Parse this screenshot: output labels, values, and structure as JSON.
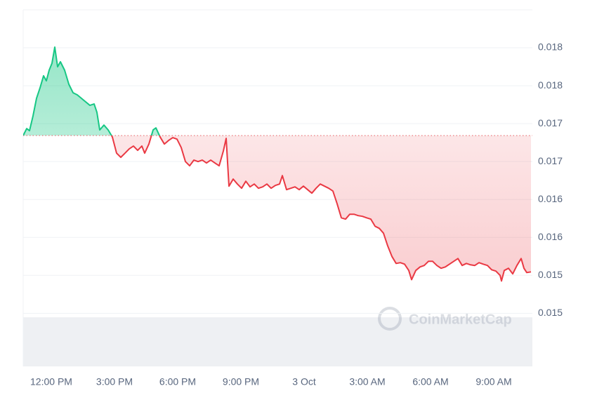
{
  "chart_data": {
    "type": "line",
    "watermark": "CoinMarketCap",
    "x": [
      -1.333,
      -1.167,
      -1.033,
      -0.867,
      -0.7,
      -0.533,
      -0.367,
      -0.233,
      -0.1,
      0.033,
      0.167,
      0.3,
      0.433,
      0.633,
      0.833,
      1.033,
      1.233,
      1.433,
      1.633,
      1.833,
      2.033,
      2.167,
      2.3,
      2.5,
      2.7,
      2.9,
      3.1,
      3.3,
      3.5,
      3.7,
      3.9,
      4.1,
      4.3,
      4.433,
      4.633,
      4.833,
      4.967,
      5.167,
      5.367,
      5.567,
      5.767,
      5.967,
      6.167,
      6.367,
      6.567,
      6.767,
      6.967,
      7.167,
      7.367,
      7.567,
      7.767,
      7.967,
      8.167,
      8.3,
      8.433,
      8.633,
      8.833,
      9.033,
      9.233,
      9.433,
      9.633,
      9.833,
      10.033,
      10.233,
      10.433,
      10.633,
      10.833,
      10.967,
      11.167,
      11.367,
      11.567,
      11.767,
      11.967,
      12.167,
      12.367,
      12.567,
      12.767,
      12.967,
      13.167,
      13.367,
      13.567,
      13.767,
      13.967,
      14.167,
      14.367,
      14.567,
      14.767,
      14.967,
      15.167,
      15.367,
      15.567,
      15.767,
      15.967,
      16.167,
      16.367,
      16.567,
      16.767,
      16.967,
      17.1,
      17.3,
      17.5,
      17.7,
      17.9,
      18.1,
      18.3,
      18.5,
      18.7,
      18.9,
      19.1,
      19.3,
      19.5,
      19.7,
      19.9,
      20.1,
      20.3,
      20.5,
      20.7,
      20.9,
      21.1,
      21.3,
      21.367,
      21.5,
      21.7,
      21.9,
      22.1,
      22.3,
      22.433,
      22.567,
      22.767
    ],
    "values": [
      0.016943,
      0.017035,
      0.017007,
      0.017202,
      0.017433,
      0.017572,
      0.01773,
      0.017665,
      0.017804,
      0.017896,
      0.018109,
      0.01785,
      0.017915,
      0.017804,
      0.017619,
      0.017507,
      0.01748,
      0.017433,
      0.017387,
      0.017341,
      0.017359,
      0.017248,
      0.017017,
      0.017081,
      0.017017,
      0.016924,
      0.016711,
      0.016656,
      0.016711,
      0.016767,
      0.016804,
      0.016748,
      0.016804,
      0.016711,
      0.016831,
      0.017017,
      0.017044,
      0.016924,
      0.016831,
      0.016878,
      0.016915,
      0.016896,
      0.016785,
      0.0166,
      0.016544,
      0.016619,
      0.0166,
      0.016619,
      0.016581,
      0.016619,
      0.016581,
      0.016544,
      0.016739,
      0.016906,
      0.016276,
      0.016369,
      0.016304,
      0.016248,
      0.016341,
      0.016267,
      0.016304,
      0.016248,
      0.016267,
      0.016304,
      0.016248,
      0.016285,
      0.016304,
      0.016415,
      0.01623,
      0.016248,
      0.016267,
      0.01623,
      0.016276,
      0.01623,
      0.016183,
      0.016248,
      0.016304,
      0.016276,
      0.016248,
      0.016211,
      0.016044,
      0.015859,
      0.015841,
      0.015906,
      0.015906,
      0.015887,
      0.015878,
      0.015859,
      0.015841,
      0.015748,
      0.01572,
      0.015656,
      0.015489,
      0.01535,
      0.015257,
      0.015267,
      0.015248,
      0.015165,
      0.015044,
      0.015165,
      0.015211,
      0.01523,
      0.015285,
      0.015285,
      0.01523,
      0.015193,
      0.015211,
      0.015248,
      0.015285,
      0.015322,
      0.01523,
      0.015257,
      0.015239,
      0.01523,
      0.015267,
      0.015248,
      0.01523,
      0.015174,
      0.015156,
      0.0151,
      0.015026,
      0.015165,
      0.015193,
      0.015119,
      0.01523,
      0.015322,
      0.015193,
      0.015137,
      0.015146
    ],
    "baseline": 0.016943,
    "colors": {
      "above": "#16c784",
      "below": "#ea3943"
    },
    "xlim": [
      -1.333,
      22.833
    ],
    "ylim": [
      0.0139,
      0.0186
    ],
    "xticks": [
      {
        "value": 0,
        "label": "12:00 PM"
      },
      {
        "value": 3,
        "label": "3:00 PM"
      },
      {
        "value": 6,
        "label": "6:00 PM"
      },
      {
        "value": 9,
        "label": "9:00 PM"
      },
      {
        "value": 12,
        "label": "3 Oct"
      },
      {
        "value": 15,
        "label": "3:00 AM"
      },
      {
        "value": 18,
        "label": "6:00 AM"
      },
      {
        "value": 21,
        "label": "9:00 AM"
      }
    ],
    "yticks": [
      {
        "value": 0.0181,
        "label": "0.018"
      },
      {
        "value": 0.0176,
        "label": "0.018"
      },
      {
        "value": 0.0171,
        "label": "0.017"
      },
      {
        "value": 0.0166,
        "label": "0.017"
      },
      {
        "value": 0.0161,
        "label": "0.016"
      },
      {
        "value": 0.0156,
        "label": "0.016"
      },
      {
        "value": 0.0151,
        "label": "0.015"
      },
      {
        "value": 0.0146,
        "label": "0.015"
      }
    ],
    "grid": true
  }
}
